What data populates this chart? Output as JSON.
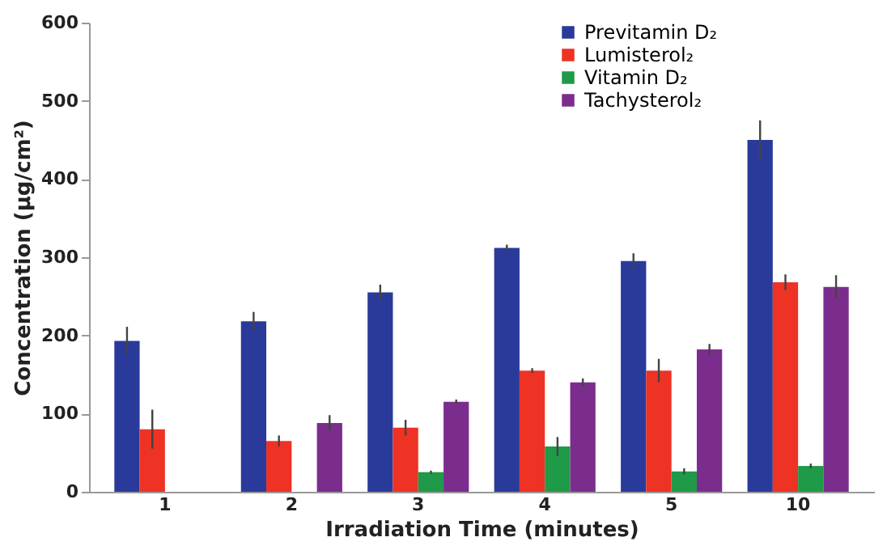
{
  "chart_data": {
    "type": "bar",
    "xlabel": "Irradiation Time (minutes)",
    "ylabel": "Concentration (µg/cm²)",
    "categories": [
      "1",
      "2",
      "3",
      "4",
      "5",
      "10"
    ],
    "series": [
      {
        "name": "Previtamin D₂",
        "color": "#2a3a9a",
        "values": [
          193,
          218,
          255,
          312,
          295,
          450
        ],
        "errors": [
          18,
          12,
          10,
          4,
          10,
          25
        ]
      },
      {
        "name": "Lumisterol₂",
        "color": "#ee3224",
        "values": [
          80,
          65,
          82,
          155,
          155,
          268
        ],
        "errors": [
          25,
          7,
          10,
          3,
          15,
          10
        ]
      },
      {
        "name": "Vitamin D₂",
        "color": "#1f9a48",
        "values": [
          null,
          null,
          25,
          58,
          26,
          33
        ],
        "errors": [
          null,
          null,
          2,
          12,
          4,
          3
        ]
      },
      {
        "name": "Tachysterol₂",
        "color": "#7b2d8e",
        "values": [
          null,
          88,
          115,
          140,
          182,
          262
        ],
        "errors": [
          null,
          10,
          3,
          5,
          7,
          15
        ]
      }
    ],
    "ylim": [
      0,
      600
    ],
    "yticks": [
      0,
      100,
      200,
      300,
      400,
      500,
      600
    ],
    "grid": false,
    "legend": "top right"
  }
}
